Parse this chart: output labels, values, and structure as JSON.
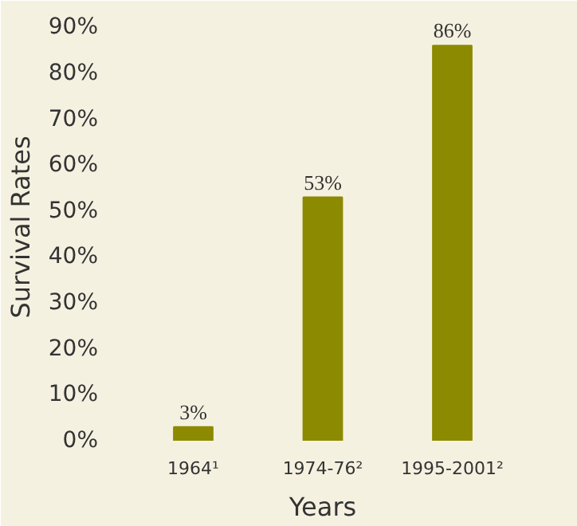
{
  "chart_data": {
    "type": "bar",
    "xlabel": "Years",
    "ylabel": "Survival Rates",
    "categories": [
      "1964¹",
      "1974-76²",
      "1995-2001²"
    ],
    "values": [
      3,
      53,
      86
    ],
    "color": "#8c8a00",
    "value_labels": [
      "3%",
      "53%",
      "86%"
    ],
    "ylim": [
      0,
      93
    ],
    "yticks": [
      {
        "value": 0,
        "label": "0%"
      },
      {
        "value": 10,
        "label": "10%"
      },
      {
        "value": 20,
        "label": "20%"
      },
      {
        "value": 30,
        "label": "30%"
      },
      {
        "value": 40,
        "label": "40%"
      },
      {
        "value": 50,
        "label": "50%"
      },
      {
        "value": 60,
        "label": "60%"
      },
      {
        "value": 70,
        "label": "70%"
      },
      {
        "value": 80,
        "label": "80%"
      },
      {
        "value": 90,
        "label": "90%"
      }
    ],
    "grid": false
  }
}
